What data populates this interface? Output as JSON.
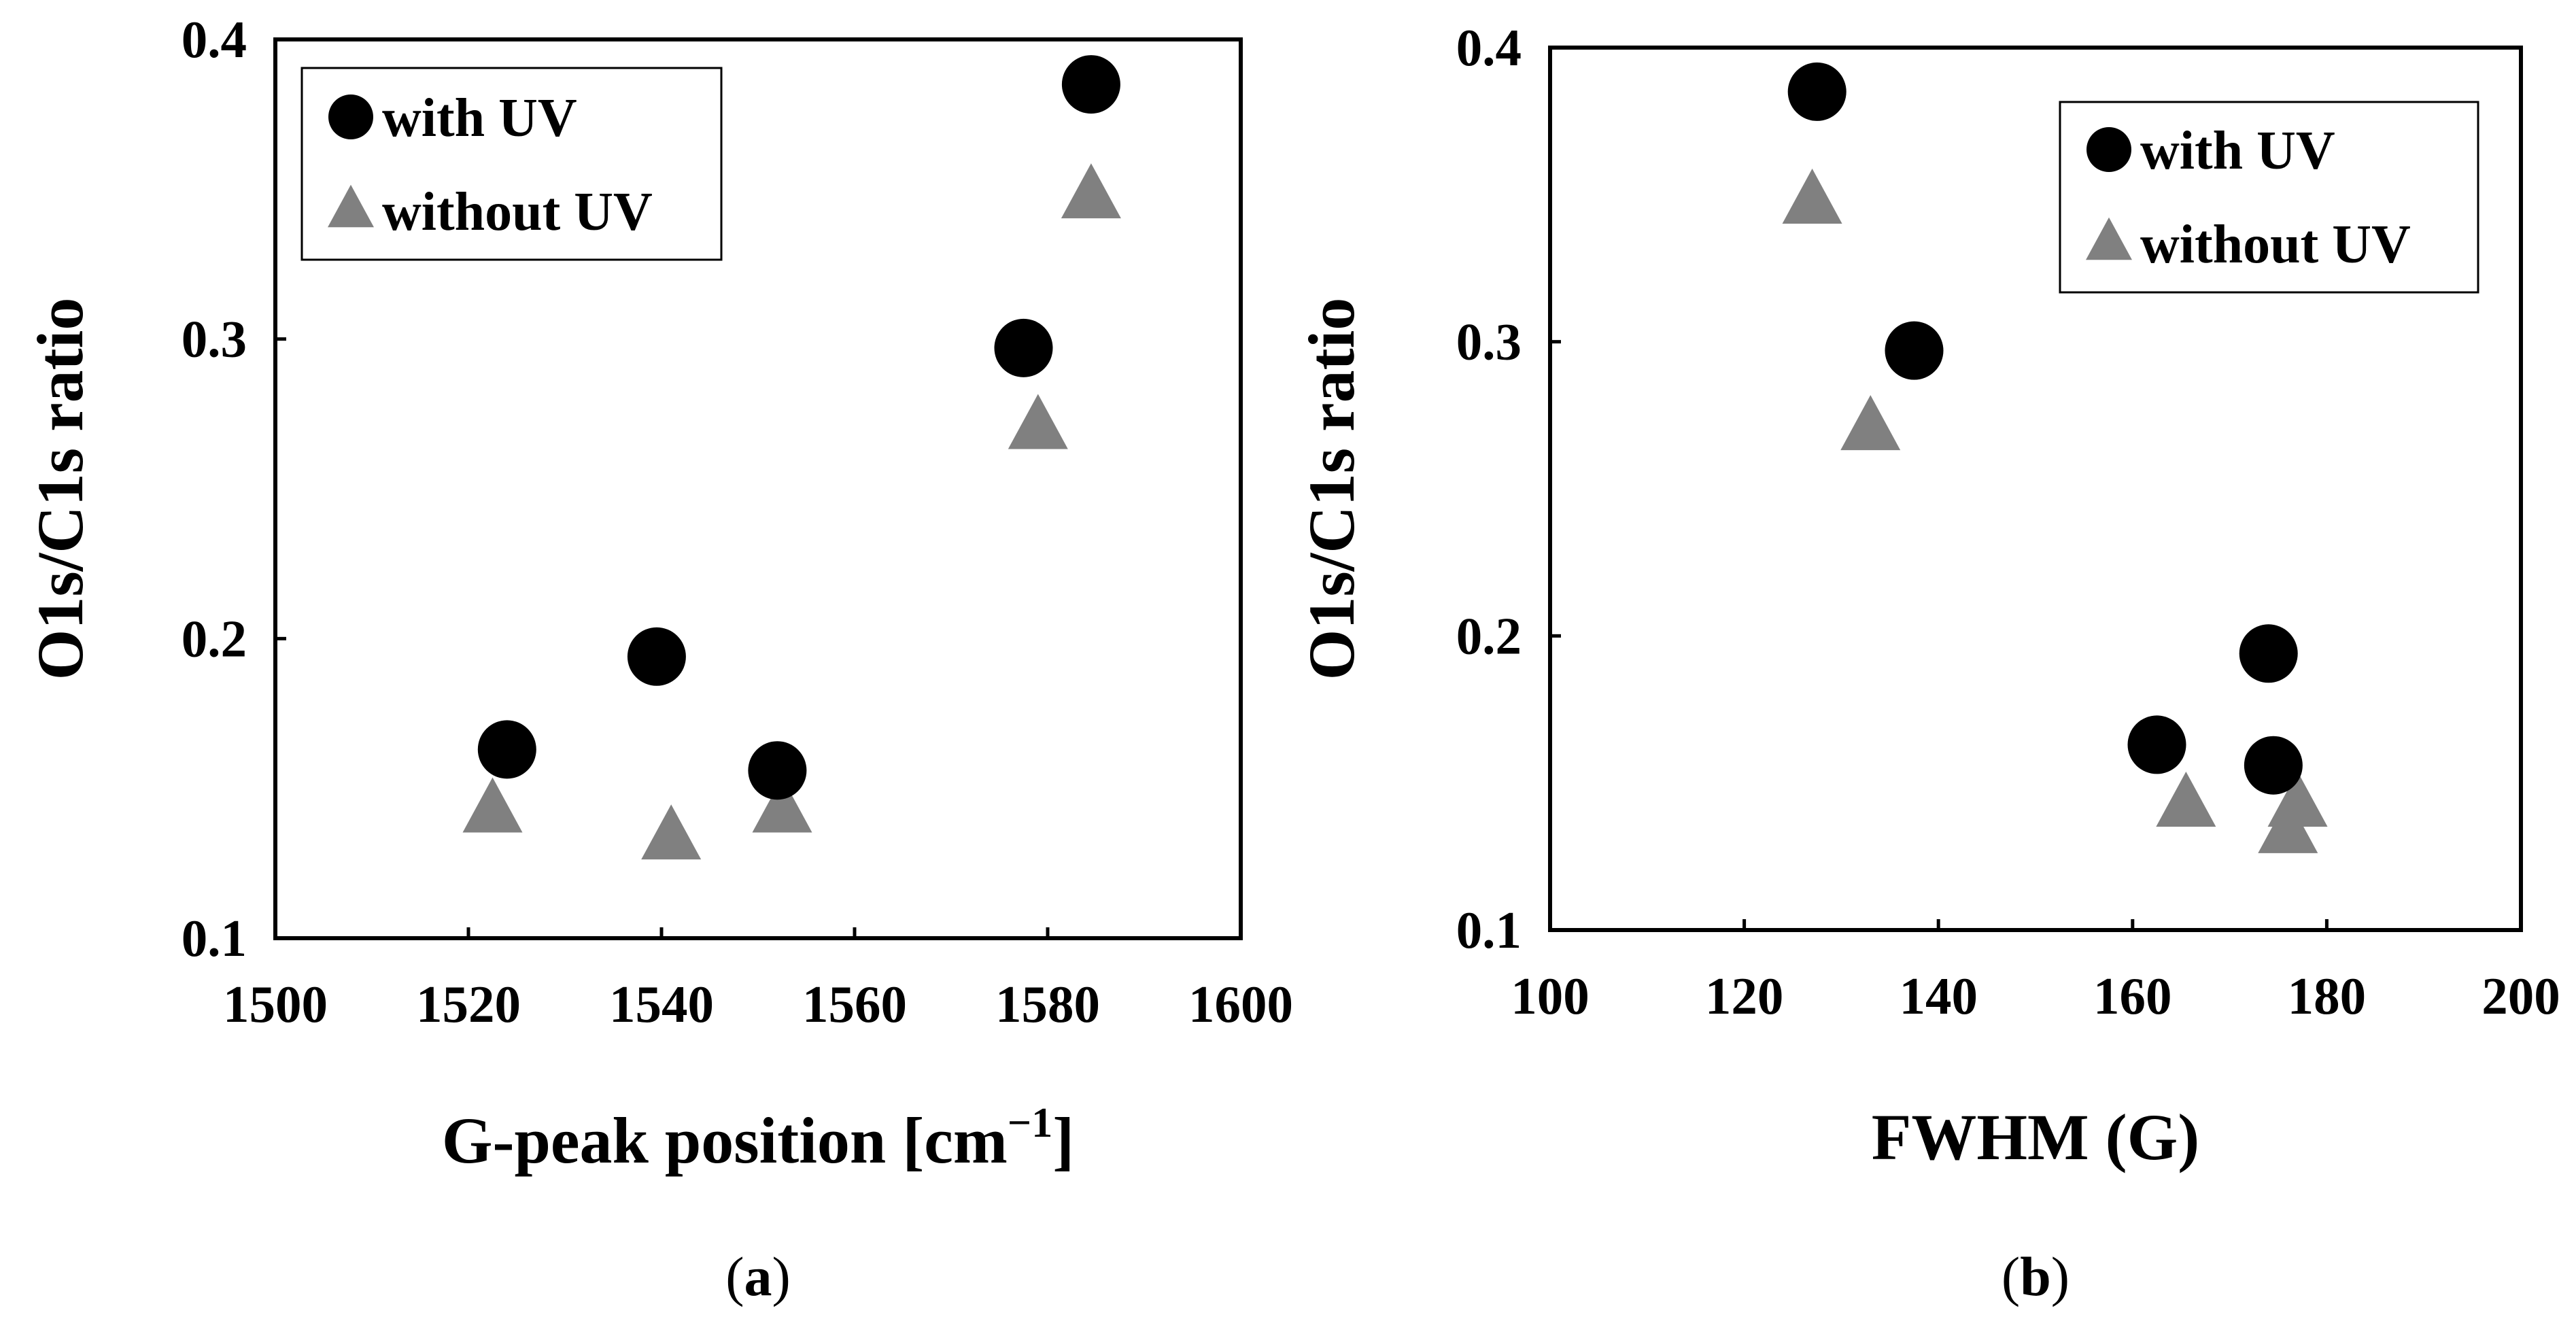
{
  "chart_data": [
    {
      "type": "scatter",
      "panel_label_open": "(",
      "panel_label": "a",
      "panel_label_close": ")",
      "xlabel": "G-peak position [cm",
      "xlabel_sup": "−1",
      "xlabel_end": "]",
      "ylabel": "O1s/C1s ratio",
      "xlim": [
        1500,
        1600
      ],
      "ylim": [
        0.1,
        0.4
      ],
      "xticks": [
        1500,
        1520,
        1540,
        1560,
        1580,
        1600
      ],
      "yticks": [
        0.1,
        0.2,
        0.3,
        0.4
      ],
      "legend_position": "top-left",
      "series": [
        {
          "name": "with UV",
          "marker": "circle",
          "color": "#000000",
          "x": [
            1524,
            1539.5,
            1552,
            1577.5,
            1584.5
          ],
          "y": [
            0.163,
            0.194,
            0.156,
            0.297,
            0.385
          ]
        },
        {
          "name": "without UV",
          "marker": "triangle",
          "color": "#808080",
          "x": [
            1522.5,
            1541,
            1552.5,
            1579,
            1584.5
          ],
          "y": [
            0.143,
            0.134,
            0.143,
            0.271,
            0.348
          ]
        }
      ]
    },
    {
      "type": "scatter",
      "panel_label_open": "(",
      "panel_label": "b",
      "panel_label_close": ")",
      "xlabel": "FWHM (G)",
      "xlabel_sup": "",
      "xlabel_end": "",
      "ylabel": "O1s/C1s ratio",
      "xlim": [
        100,
        200
      ],
      "ylim": [
        0.1,
        0.4
      ],
      "xticks": [
        100,
        120,
        140,
        160,
        180,
        200
      ],
      "yticks": [
        0.1,
        0.2,
        0.3,
        0.4
      ],
      "legend_position": "top-right",
      "series": [
        {
          "name": "with UV",
          "marker": "circle",
          "color": "#000000",
          "x": [
            127.5,
            137.5,
            162.5,
            174,
            174.5
          ],
          "y": [
            0.385,
            0.297,
            0.163,
            0.194,
            0.156
          ]
        },
        {
          "name": "without UV",
          "marker": "triangle",
          "color": "#808080",
          "x": [
            127,
            133,
            165.5,
            176,
            177
          ],
          "y": [
            0.348,
            0.271,
            0.143,
            0.134,
            0.143
          ]
        }
      ]
    }
  ]
}
